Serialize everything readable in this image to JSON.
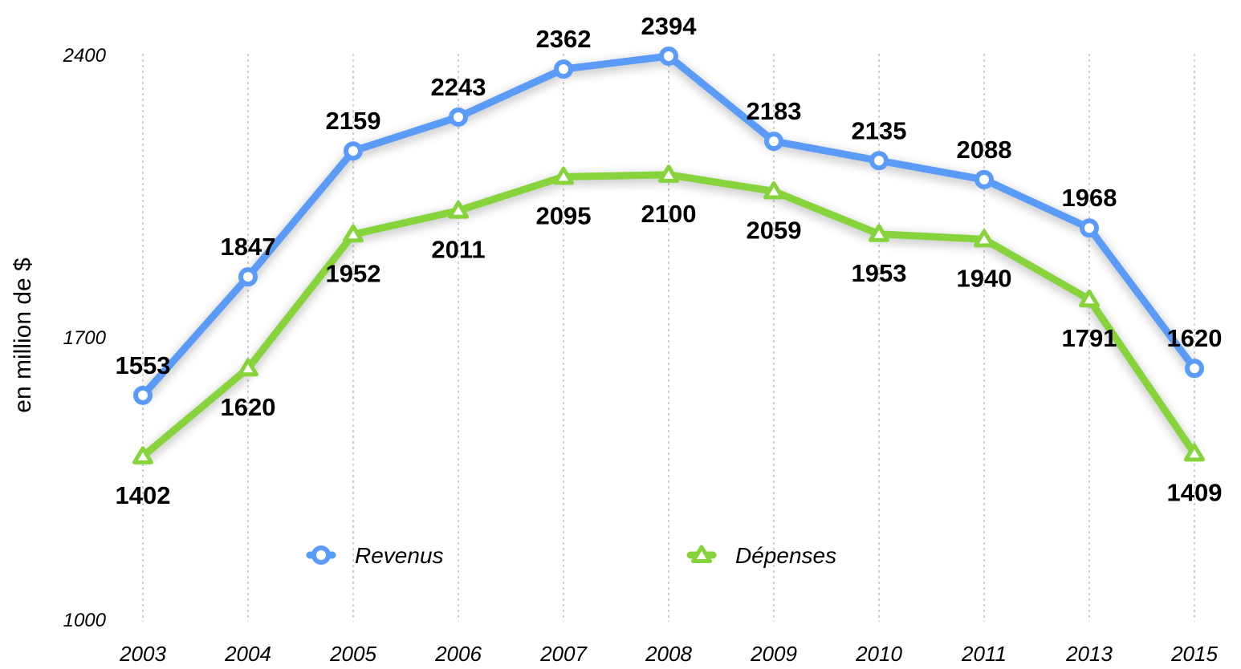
{
  "chart_data": {
    "type": "line",
    "categories": [
      "2003",
      "2004",
      "2005",
      "2006",
      "2007",
      "2008",
      "2009",
      "2010",
      "2011",
      "2013",
      "2015"
    ],
    "ylabel": "en million de $",
    "ylim": [
      1000,
      2400
    ],
    "yticks": [
      1000,
      1700,
      2400
    ],
    "grid": "vertical dashed",
    "legend_position": "bottom-center",
    "series": [
      {
        "name": "Revenus",
        "color": "#5b9bf8",
        "marker": "circle",
        "label_position": "above",
        "values": [
          1553,
          1847,
          2159,
          2243,
          2362,
          2394,
          2183,
          2135,
          2088,
          1968,
          1620
        ]
      },
      {
        "name": "Dépenses",
        "color": "#86d33c",
        "marker": "triangle",
        "label_position": "below",
        "values": [
          1402,
          1620,
          1952,
          2011,
          2095,
          2100,
          2059,
          1953,
          1940,
          1791,
          1409
        ]
      }
    ]
  }
}
